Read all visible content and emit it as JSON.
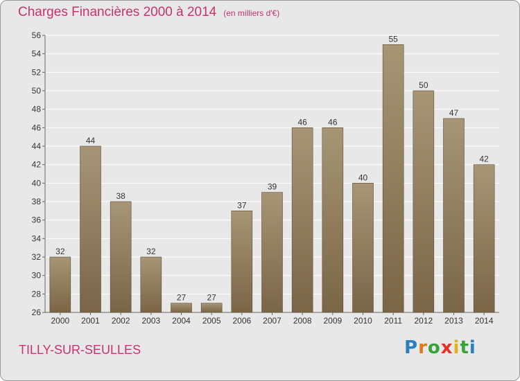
{
  "header": {
    "title": "Charges Financières 2000 à 2014",
    "subtitle": "(en milliers d'€)"
  },
  "footer": {
    "commune": "TILLY-SUR-SEULLES",
    "brand": "Proxiti"
  },
  "colors": {
    "title": "#c8326e",
    "bar_light": "#a69676",
    "bar_dark": "#7a6547",
    "background": "#e8e8e8"
  },
  "chart_data": {
    "type": "bar",
    "title": "Charges Financières 2000 à 2014",
    "subtitle": "(en milliers d'€)",
    "categories": [
      "2000",
      "2001",
      "2002",
      "2003",
      "2004",
      "2005",
      "2006",
      "2007",
      "2008",
      "2009",
      "2010",
      "2011",
      "2012",
      "2013",
      "2014"
    ],
    "values": [
      32,
      44,
      38,
      32,
      27,
      27,
      37,
      39,
      46,
      46,
      40,
      55,
      50,
      47,
      42
    ],
    "ylim": [
      26,
      56
    ],
    "yticks": [
      26,
      28,
      30,
      32,
      34,
      36,
      38,
      40,
      42,
      44,
      46,
      48,
      50,
      52,
      54,
      56
    ],
    "grid": true,
    "legend": "none"
  }
}
